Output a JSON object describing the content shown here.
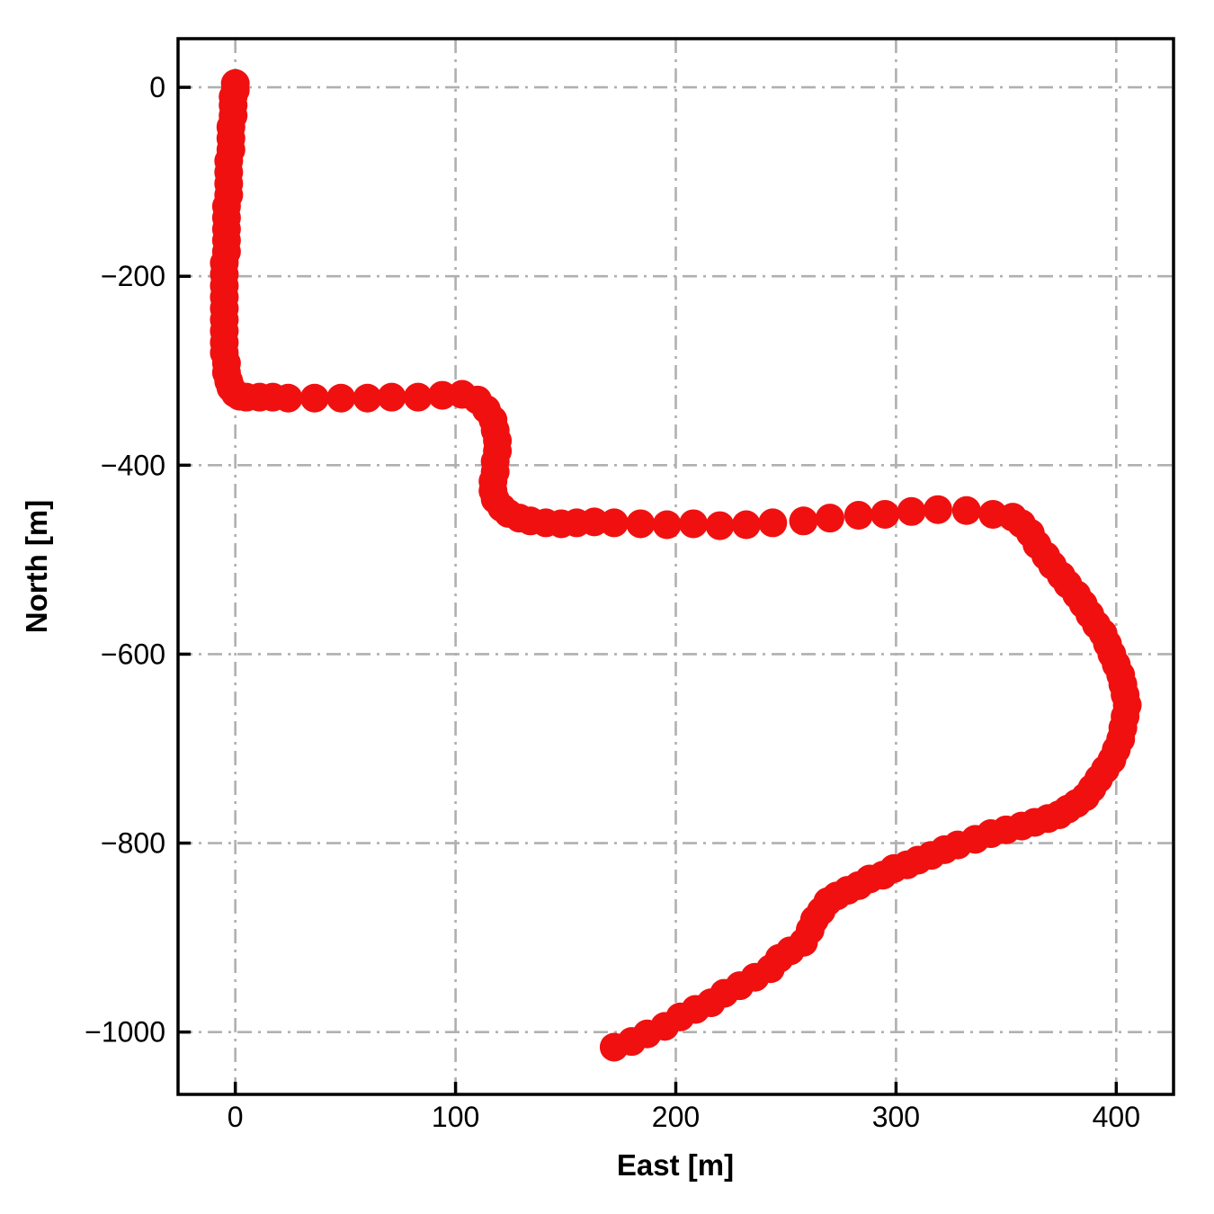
{
  "figure": {
    "background_color": "#ffffff"
  },
  "chart_data": {
    "type": "scatter",
    "title": "",
    "xlabel": "East [m]",
    "ylabel": "North [m]",
    "xlim": [
      -26,
      426
    ],
    "ylim": [
      -1066,
      51.5
    ],
    "grid": true,
    "grid_style": "dash-dot",
    "grid_color": "#b0b0b0",
    "spine_color": "#000000",
    "marker_color": "#f01010",
    "marker_radius_px": 16,
    "xticks": [
      {
        "value": 0,
        "label": "0"
      },
      {
        "value": 100,
        "label": "100"
      },
      {
        "value": 200,
        "label": "200"
      },
      {
        "value": 300,
        "label": "300"
      },
      {
        "value": 400,
        "label": "400"
      }
    ],
    "yticks": [
      {
        "value": 0,
        "label": "0"
      },
      {
        "value": -200,
        "label": "−200"
      },
      {
        "value": -400,
        "label": "−400"
      },
      {
        "value": -600,
        "label": "−600"
      },
      {
        "value": -800,
        "label": "−800"
      },
      {
        "value": -1000,
        "label": "−1000"
      }
    ],
    "series_name": "trajectory",
    "points_east_north": [
      [
        0,
        4
      ],
      [
        0,
        -3
      ],
      [
        -1,
        -10
      ],
      [
        -1,
        -19
      ],
      [
        -1,
        -30
      ],
      [
        -2,
        -42
      ],
      [
        -2,
        -54
      ],
      [
        -2,
        -66
      ],
      [
        -3,
        -78
      ],
      [
        -3,
        -90
      ],
      [
        -3,
        -102
      ],
      [
        -3,
        -114
      ],
      [
        -4,
        -126
      ],
      [
        -4,
        -138
      ],
      [
        -4,
        -150
      ],
      [
        -4,
        -162
      ],
      [
        -4,
        -174
      ],
      [
        -5,
        -186
      ],
      [
        -5,
        -198
      ],
      [
        -5,
        -210
      ],
      [
        -5,
        -222
      ],
      [
        -5,
        -234
      ],
      [
        -5,
        -246
      ],
      [
        -5,
        -258
      ],
      [
        -5,
        -270
      ],
      [
        -5,
        -281
      ],
      [
        -4,
        -292
      ],
      [
        -4,
        -302
      ],
      [
        -3,
        -311
      ],
      [
        -2,
        -318
      ],
      [
        0,
        -324
      ],
      [
        2,
        -327
      ],
      [
        5,
        -328
      ],
      [
        11,
        -328
      ],
      [
        17,
        -328
      ],
      [
        24,
        -329
      ],
      [
        36,
        -329
      ],
      [
        48,
        -329
      ],
      [
        60,
        -329
      ],
      [
        71,
        -328
      ],
      [
        83,
        -328
      ],
      [
        94,
        -326
      ],
      [
        103,
        -325
      ],
      [
        110,
        -331
      ],
      [
        114,
        -341
      ],
      [
        117,
        -352
      ],
      [
        118,
        -363
      ],
      [
        119,
        -374
      ],
      [
        119,
        -385
      ],
      [
        118,
        -396
      ],
      [
        118,
        -407
      ],
      [
        117,
        -417
      ],
      [
        117,
        -427
      ],
      [
        118,
        -436
      ],
      [
        121,
        -445
      ],
      [
        124,
        -451
      ],
      [
        129,
        -456
      ],
      [
        134,
        -459
      ],
      [
        141,
        -461
      ],
      [
        148,
        -462
      ],
      [
        155,
        -461
      ],
      [
        163,
        -460
      ],
      [
        172,
        -461
      ],
      [
        184,
        -462
      ],
      [
        196,
        -463
      ],
      [
        208,
        -462
      ],
      [
        220,
        -464
      ],
      [
        232,
        -463
      ],
      [
        244,
        -461
      ],
      [
        258,
        -459
      ],
      [
        270,
        -456
      ],
      [
        283,
        -453
      ],
      [
        295,
        -452
      ],
      [
        307,
        -449
      ],
      [
        319,
        -447
      ],
      [
        332,
        -448
      ],
      [
        344,
        -452
      ],
      [
        353,
        -455
      ],
      [
        357,
        -462
      ],
      [
        361,
        -472
      ],
      [
        364,
        -484
      ],
      [
        368,
        -496
      ],
      [
        371,
        -506
      ],
      [
        375,
        -517
      ],
      [
        378,
        -526
      ],
      [
        382,
        -537
      ],
      [
        385,
        -547
      ],
      [
        388,
        -558
      ],
      [
        391,
        -569
      ],
      [
        394,
        -578
      ],
      [
        396,
        -589
      ],
      [
        398,
        -600
      ],
      [
        400,
        -611
      ],
      [
        402,
        -622
      ],
      [
        403,
        -632
      ],
      [
        404,
        -643
      ],
      [
        405,
        -654
      ],
      [
        404,
        -666
      ],
      [
        403,
        -678
      ],
      [
        402,
        -690
      ],
      [
        400,
        -701
      ],
      [
        398,
        -712
      ],
      [
        395,
        -722
      ],
      [
        392,
        -732
      ],
      [
        389,
        -742
      ],
      [
        386,
        -751
      ],
      [
        382,
        -758
      ],
      [
        378,
        -764
      ],
      [
        374,
        -770
      ],
      [
        369,
        -774
      ],
      [
        363,
        -778
      ],
      [
        357,
        -782
      ],
      [
        350,
        -786
      ],
      [
        343,
        -790
      ],
      [
        336,
        -796
      ],
      [
        328,
        -802
      ],
      [
        322,
        -807
      ],
      [
        316,
        -813
      ],
      [
        310,
        -818
      ],
      [
        305,
        -823
      ],
      [
        299,
        -827
      ],
      [
        294,
        -834
      ],
      [
        288,
        -838
      ],
      [
        283,
        -845
      ],
      [
        278,
        -850
      ],
      [
        273,
        -856
      ],
      [
        269,
        -862
      ],
      [
        266,
        -872
      ],
      [
        263,
        -881
      ],
      [
        261,
        -892
      ],
      [
        258,
        -905
      ],
      [
        252,
        -914
      ],
      [
        247,
        -922
      ],
      [
        243,
        -933
      ],
      [
        236,
        -942
      ],
      [
        229,
        -951
      ],
      [
        222,
        -959
      ],
      [
        216,
        -969
      ],
      [
        209,
        -976
      ],
      [
        202,
        -984
      ],
      [
        195,
        -994
      ],
      [
        187,
        -1002
      ],
      [
        180,
        -1010
      ],
      [
        172,
        -1016
      ]
    ]
  }
}
